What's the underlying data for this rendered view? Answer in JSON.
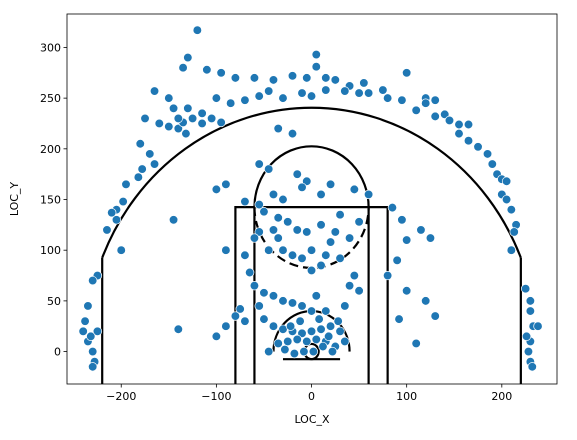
{
  "chart_data": {
    "type": "scatter",
    "xlabel": "LOC_X",
    "ylabel": "LOC_Y",
    "xlim": [
      -257,
      258
    ],
    "ylim": [
      -32,
      333
    ],
    "xticks": [
      -200,
      -100,
      0,
      100,
      200
    ],
    "yticks": [
      0,
      50,
      100,
      150,
      200,
      250,
      300
    ],
    "grid": false,
    "marker_color": "#1f77b4",
    "court": {
      "hoop": [
        0,
        0
      ],
      "rim_radius": 7.5,
      "restricted_radius": 40,
      "paint_outer": [
        -80,
        80
      ],
      "paint_inner": [
        -60,
        60
      ],
      "free_throw_y": 142.5,
      "free_throw_radius": 60,
      "three_point_radius": 237.5,
      "corner_three_x": 220,
      "corner_three_y": 92.5
    },
    "points": [
      [
        -120,
        317
      ],
      [
        -130,
        290
      ],
      [
        -135,
        280
      ],
      [
        -110,
        278
      ],
      [
        -95,
        275
      ],
      [
        -80,
        270
      ],
      [
        -60,
        270
      ],
      [
        -40,
        268
      ],
      [
        -20,
        272
      ],
      [
        -5,
        270
      ],
      [
        5,
        293
      ],
      [
        5,
        281
      ],
      [
        15,
        270
      ],
      [
        25,
        268
      ],
      [
        40,
        262
      ],
      [
        55,
        265
      ],
      [
        75,
        258
      ],
      [
        100,
        275
      ],
      [
        120,
        250
      ],
      [
        130,
        248
      ],
      [
        -165,
        257
      ],
      [
        -150,
        250
      ],
      [
        -145,
        240
      ],
      [
        -130,
        240
      ],
      [
        -115,
        235
      ],
      [
        -100,
        250
      ],
      [
        -85,
        245
      ],
      [
        -70,
        248
      ],
      [
        -55,
        252
      ],
      [
        -45,
        257
      ],
      [
        -30,
        250
      ],
      [
        -10,
        255
      ],
      [
        0,
        252
      ],
      [
        15,
        258
      ],
      [
        35,
        257
      ],
      [
        50,
        255
      ],
      [
        60,
        255
      ],
      [
        80,
        250
      ],
      [
        95,
        248
      ],
      [
        110,
        238
      ],
      [
        120,
        245
      ],
      [
        140,
        234
      ],
      [
        -175,
        230
      ],
      [
        -160,
        225
      ],
      [
        -150,
        222
      ],
      [
        -140,
        220
      ],
      [
        -132,
        215
      ],
      [
        -125,
        230
      ],
      [
        -115,
        225
      ],
      [
        -105,
        230
      ],
      [
        -95,
        226
      ],
      [
        -135,
        226
      ],
      [
        -140,
        230
      ],
      [
        -180,
        205
      ],
      [
        -170,
        195
      ],
      [
        -165,
        185
      ],
      [
        -178,
        180
      ],
      [
        -182,
        172
      ],
      [
        130,
        232
      ],
      [
        145,
        228
      ],
      [
        155,
        215
      ],
      [
        165,
        208
      ],
      [
        175,
        202
      ],
      [
        185,
        195
      ],
      [
        190,
        185
      ],
      [
        195,
        175
      ],
      [
        200,
        170
      ],
      [
        205,
        168
      ],
      [
        155,
        224
      ],
      [
        165,
        224
      ],
      [
        -195,
        165
      ],
      [
        -198,
        148
      ],
      [
        -205,
        140
      ],
      [
        -210,
        137
      ],
      [
        -205,
        130
      ],
      [
        -215,
        120
      ],
      [
        -200,
        100
      ],
      [
        200,
        155
      ],
      [
        205,
        150
      ],
      [
        210,
        140
      ],
      [
        215,
        125
      ],
      [
        213,
        118
      ],
      [
        210,
        100
      ],
      [
        -225,
        75
      ],
      [
        -230,
        70
      ],
      [
        -235,
        45
      ],
      [
        -238,
        30
      ],
      [
        -240,
        20
      ],
      [
        -235,
        10
      ],
      [
        -230,
        0
      ],
      [
        -228,
        -10
      ],
      [
        -230,
        -15
      ],
      [
        -225,
        20
      ],
      [
        -232,
        15
      ],
      [
        225,
        62
      ],
      [
        230,
        50
      ],
      [
        230,
        40
      ],
      [
        233,
        25
      ],
      [
        238,
        25
      ],
      [
        230,
        10
      ],
      [
        228,
        0
      ],
      [
        230,
        -10
      ],
      [
        232,
        -15
      ],
      [
        226,
        15
      ],
      [
        -35,
        220
      ],
      [
        -20,
        215
      ],
      [
        -55,
        185
      ],
      [
        -45,
        180
      ],
      [
        -15,
        175
      ],
      [
        -5,
        168
      ],
      [
        20,
        165
      ],
      [
        45,
        160
      ],
      [
        60,
        155
      ],
      [
        -40,
        155
      ],
      [
        -30,
        150
      ],
      [
        -10,
        162
      ],
      [
        10,
        155
      ],
      [
        -90,
        165
      ],
      [
        -100,
        160
      ],
      [
        -70,
        148
      ],
      [
        -55,
        145
      ],
      [
        -50,
        138
      ],
      [
        -35,
        132
      ],
      [
        -25,
        128
      ],
      [
        -15,
        120
      ],
      [
        -40,
        120
      ],
      [
        -55,
        118
      ],
      [
        -60,
        112
      ],
      [
        -5,
        118
      ],
      [
        10,
        125
      ],
      [
        30,
        135
      ],
      [
        25,
        118
      ],
      [
        40,
        112
      ],
      [
        50,
        128
      ],
      [
        -45,
        100
      ],
      [
        -30,
        100
      ],
      [
        -20,
        95
      ],
      [
        -10,
        92
      ],
      [
        0,
        100
      ],
      [
        15,
        95
      ],
      [
        30,
        92
      ],
      [
        20,
        108
      ],
      [
        -35,
        112
      ],
      [
        0,
        80
      ],
      [
        10,
        85
      ],
      [
        -90,
        100
      ],
      [
        -70,
        95
      ],
      [
        -65,
        78
      ],
      [
        -60,
        65
      ],
      [
        -50,
        58
      ],
      [
        -40,
        55
      ],
      [
        -30,
        50
      ],
      [
        -20,
        48
      ],
      [
        -10,
        45
      ],
      [
        0,
        40
      ],
      [
        5,
        55
      ],
      [
        -75,
        42
      ],
      [
        -55,
        45
      ],
      [
        45,
        75
      ],
      [
        50,
        60
      ],
      [
        40,
        65
      ],
      [
        35,
        45
      ],
      [
        15,
        40
      ],
      [
        85,
        142
      ],
      [
        95,
        130
      ],
      [
        100,
        110
      ],
      [
        115,
        120
      ],
      [
        125,
        112
      ],
      [
        90,
        90
      ],
      [
        80,
        75
      ],
      [
        100,
        60
      ],
      [
        120,
        50
      ],
      [
        130,
        35
      ],
      [
        92,
        32
      ],
      [
        110,
        8
      ],
      [
        -145,
        130
      ],
      [
        -140,
        22
      ],
      [
        -100,
        15
      ],
      [
        -70,
        30
      ],
      [
        -90,
        25
      ],
      [
        -80,
        35
      ],
      [
        -50,
        32
      ],
      [
        -40,
        25
      ],
      [
        -30,
        22
      ],
      [
        -20,
        20
      ],
      [
        -10,
        18
      ],
      [
        0,
        20
      ],
      [
        10,
        22
      ],
      [
        20,
        25
      ],
      [
        30,
        20
      ],
      [
        35,
        10
      ],
      [
        25,
        5
      ],
      [
        15,
        10
      ],
      [
        5,
        12
      ],
      [
        -5,
        10
      ],
      [
        -15,
        12
      ],
      [
        -25,
        10
      ],
      [
        -35,
        8
      ],
      [
        -28,
        2
      ],
      [
        -18,
        -2
      ],
      [
        -8,
        0
      ],
      [
        2,
        0
      ],
      [
        12,
        5
      ],
      [
        22,
        0
      ],
      [
        -45,
        0
      ],
      [
        28,
        30
      ],
      [
        -12,
        30
      ],
      [
        8,
        32
      ],
      [
        18,
        15
      ],
      [
        -22,
        25
      ]
    ]
  }
}
